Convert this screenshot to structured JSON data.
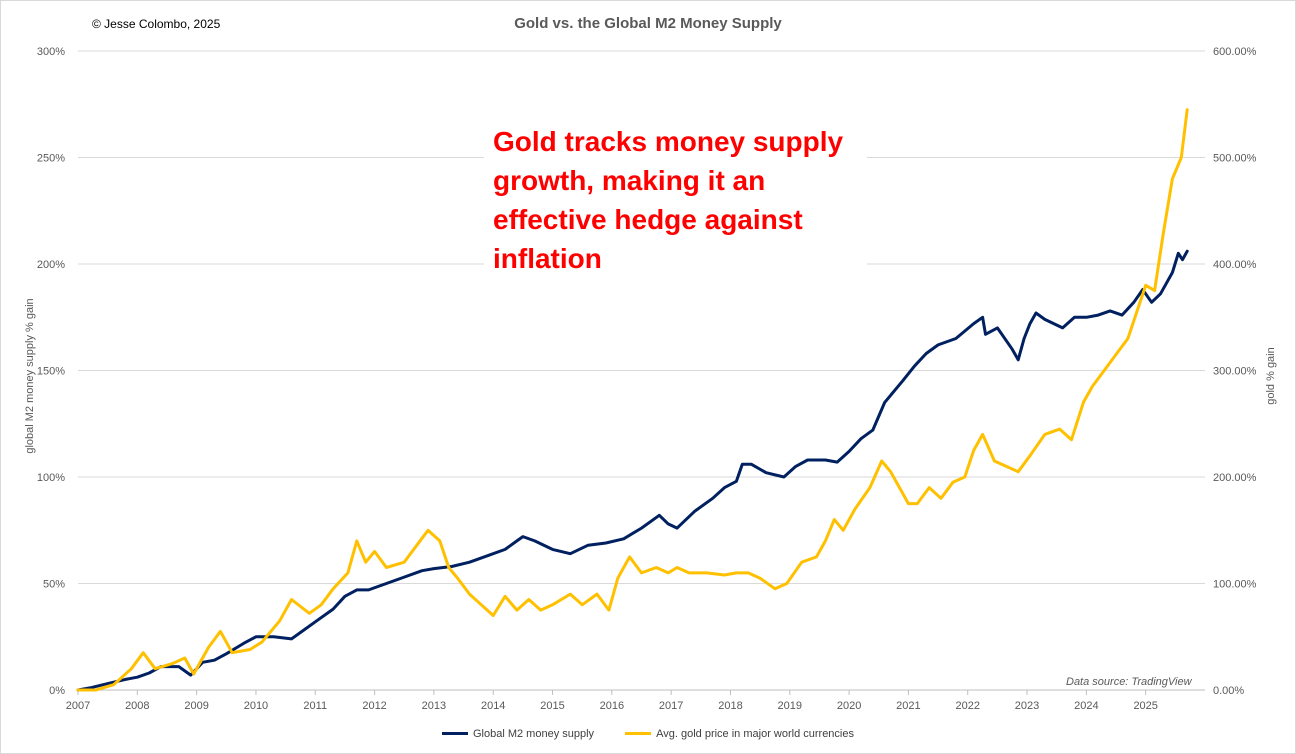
{
  "copyright": "© Jesse Colombo, 2025",
  "annotation": "Gold tracks money supply growth, making it an effective hedge against inflation",
  "source_note": "Data source: TradingView",
  "colors": {
    "m2": "#002060",
    "gold": "#ffc000",
    "grid": "#d9d9d9"
  },
  "chart_data": {
    "type": "line",
    "title": "Gold vs. the Global M2 Money Supply",
    "ylabel_left": "global M2 money supply % gain",
    "ylabel_right": "gold % gain",
    "xlim": [
      2007,
      2026
    ],
    "ylim_left": [
      0,
      300
    ],
    "ylim_right": [
      0,
      600
    ],
    "x_ticks": [
      "2007",
      "2008",
      "2009",
      "2010",
      "2011",
      "2012",
      "2013",
      "2014",
      "2015",
      "2016",
      "2017",
      "2018",
      "2019",
      "2020",
      "2021",
      "2022",
      "2023",
      "2024",
      "2025"
    ],
    "y_ticks_left": [
      "0%",
      "50%",
      "100%",
      "150%",
      "200%",
      "250%",
      "300%"
    ],
    "y_ticks_right": [
      "0.00%",
      "100.00%",
      "200.00%",
      "300.00%",
      "400.00%",
      "500.00%",
      "600.00%"
    ],
    "grid": true,
    "legend_position": "bottom",
    "series": [
      {
        "name": "Global M2 money supply",
        "axis": "left",
        "x": [
          2007.0,
          2007.2,
          2007.5,
          2007.8,
          2008.0,
          2008.2,
          2008.4,
          2008.7,
          2008.9,
          2009.1,
          2009.3,
          2009.5,
          2009.8,
          2010.0,
          2010.3,
          2010.6,
          2010.8,
          2011.0,
          2011.3,
          2011.5,
          2011.7,
          2011.9,
          2012.2,
          2012.5,
          2012.8,
          2013.0,
          2013.3,
          2013.6,
          2013.9,
          2014.2,
          2014.4,
          2014.5,
          2014.7,
          2015.0,
          2015.3,
          2015.6,
          2015.9,
          2016.2,
          2016.5,
          2016.8,
          2016.95,
          2017.1,
          2017.4,
          2017.7,
          2017.9,
          2018.1,
          2018.2,
          2018.35,
          2018.6,
          2018.9,
          2019.1,
          2019.3,
          2019.6,
          2019.8,
          2020.0,
          2020.2,
          2020.4,
          2020.6,
          2020.9,
          2021.1,
          2021.3,
          2021.5,
          2021.8,
          2022.1,
          2022.25,
          2022.3,
          2022.5,
          2022.75,
          2022.85,
          2022.95,
          2023.05,
          2023.15,
          2023.3,
          2023.45,
          2023.6,
          2023.8,
          2024.0,
          2024.2,
          2024.4,
          2024.6,
          2024.8,
          2024.95,
          2025.1,
          2025.25,
          2025.45,
          2025.55,
          2025.62,
          2025.7
        ],
        "values": [
          0,
          1,
          3,
          5,
          6,
          8,
          11,
          11,
          7,
          13,
          14,
          17,
          22,
          25,
          25,
          24,
          28,
          32,
          38,
          44,
          47,
          47,
          50,
          53,
          56,
          57,
          58,
          60,
          63,
          66,
          70,
          72,
          70,
          66,
          64,
          68,
          69,
          71,
          76,
          82,
          78,
          76,
          84,
          90,
          95,
          98,
          106,
          106,
          102,
          100,
          105,
          108,
          108,
          107,
          112,
          118,
          122,
          135,
          145,
          152,
          158,
          162,
          165,
          172,
          175,
          167,
          170,
          160,
          155,
          165,
          172,
          177,
          174,
          172,
          170,
          175,
          175,
          176,
          178,
          176,
          182,
          188,
          182,
          186,
          196,
          205,
          202,
          206
        ]
      },
      {
        "name": "Avg. gold price in major world currencies",
        "axis": "right",
        "x": [
          2007.0,
          2007.3,
          2007.6,
          2007.9,
          2008.1,
          2008.3,
          2008.6,
          2008.8,
          2008.95,
          2009.2,
          2009.4,
          2009.6,
          2009.9,
          2010.1,
          2010.4,
          2010.6,
          2010.9,
          2011.1,
          2011.3,
          2011.55,
          2011.7,
          2011.85,
          2012.0,
          2012.2,
          2012.5,
          2012.7,
          2012.9,
          2013.1,
          2013.25,
          2013.4,
          2013.6,
          2013.8,
          2014.0,
          2014.2,
          2014.4,
          2014.6,
          2014.8,
          2015.0,
          2015.3,
          2015.5,
          2015.75,
          2015.95,
          2016.1,
          2016.3,
          2016.5,
          2016.75,
          2016.95,
          2017.1,
          2017.3,
          2017.6,
          2017.9,
          2018.1,
          2018.3,
          2018.5,
          2018.75,
          2018.95,
          2019.2,
          2019.45,
          2019.6,
          2019.75,
          2019.9,
          2020.1,
          2020.35,
          2020.55,
          2020.7,
          2020.85,
          2021.0,
          2021.15,
          2021.35,
          2021.55,
          2021.75,
          2021.95,
          2022.1,
          2022.25,
          2022.45,
          2022.65,
          2022.85,
          2023.05,
          2023.3,
          2023.55,
          2023.75,
          2023.95,
          2024.1,
          2024.3,
          2024.5,
          2024.7,
          2024.85,
          2025.0,
          2025.15,
          2025.3,
          2025.45,
          2025.6,
          2025.7
        ],
        "values": [
          0,
          -2,
          5,
          20,
          35,
          20,
          25,
          30,
          15,
          40,
          55,
          35,
          38,
          45,
          65,
          85,
          72,
          80,
          95,
          110,
          140,
          120,
          130,
          115,
          120,
          135,
          150,
          140,
          115,
          105,
          90,
          80,
          70,
          88,
          75,
          85,
          75,
          80,
          90,
          80,
          90,
          75,
          105,
          125,
          110,
          115,
          110,
          115,
          110,
          110,
          108,
          110,
          110,
          105,
          95,
          100,
          120,
          125,
          140,
          160,
          150,
          170,
          190,
          215,
          205,
          190,
          175,
          175,
          190,
          180,
          195,
          200,
          225,
          240,
          215,
          210,
          205,
          220,
          240,
          245,
          235,
          270,
          285,
          300,
          315,
          330,
          355,
          380,
          375,
          430,
          480,
          500,
          545
        ]
      }
    ]
  }
}
